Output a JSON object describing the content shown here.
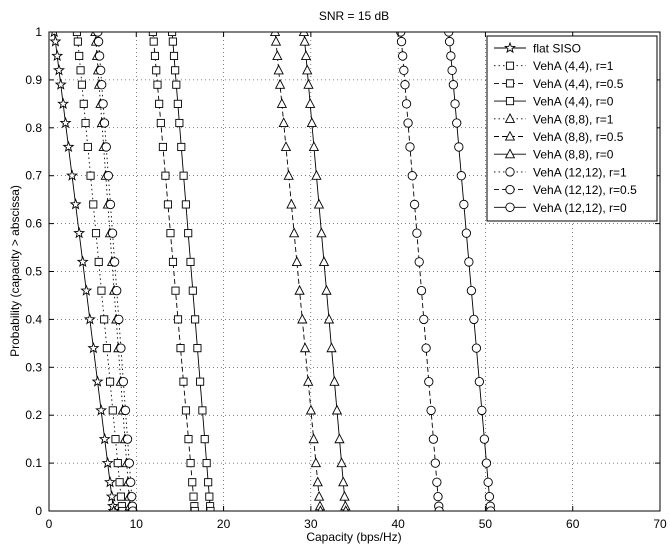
{
  "chart_data": {
    "type": "line",
    "title": "SNR = 15 dB",
    "xlabel": "Capacity (bps/Hz)",
    "ylabel": "Probability (capacity > abscissa)",
    "xlim": [
      0,
      70
    ],
    "ylim": [
      0,
      1
    ],
    "xticks": [
      0,
      10,
      20,
      30,
      40,
      50,
      60,
      70
    ],
    "yticks": [
      0,
      0.1,
      0.2,
      0.3,
      0.4,
      0.5,
      0.6,
      0.7,
      0.8,
      0.9,
      1
    ],
    "xtick_labels": [
      "0",
      "10",
      "20",
      "30",
      "40",
      "50",
      "60",
      "70"
    ],
    "ytick_labels": [
      "0",
      "0.1",
      "0.2",
      "0.3",
      "0.4",
      "0.5",
      "0.6",
      "0.7",
      "0.8",
      "0.9",
      "1"
    ],
    "grid": true,
    "legend_position": "top-right",
    "y_points": [
      1.0,
      0.98,
      0.95,
      0.92,
      0.89,
      0.85,
      0.81,
      0.76,
      0.7,
      0.64,
      0.58,
      0.52,
      0.46,
      0.4,
      0.34,
      0.27,
      0.21,
      0.15,
      0.1,
      0.06,
      0.03,
      0.01,
      0.0
    ],
    "series": [
      {
        "name": "flat SISO",
        "marker": "star",
        "dash": "solid",
        "mid": 4.0,
        "halfwidth": 3.4,
        "skew": 0.0
      },
      {
        "name": "VehA (4,4), r=1",
        "marker": "square",
        "dash": "dotted",
        "mid": 5.8,
        "halfwidth": 2.6,
        "skew": 0.0
      },
      {
        "name": "VehA (4,4), r=0.5",
        "marker": "square",
        "dash": "dashed",
        "mid": 14.3,
        "halfwidth": 2.4,
        "skew": 0.0
      },
      {
        "name": "VehA (4,4), r=0",
        "marker": "square",
        "dash": "solid",
        "mid": 16.3,
        "halfwidth": 2.2,
        "skew": 0.0
      },
      {
        "name": "VehA (8,8), r=1",
        "marker": "triangle",
        "dash": "dotted",
        "mid": 7.3,
        "halfwidth": 2.0,
        "skew": 0.0
      },
      {
        "name": "VehA (8,8), r=0.5",
        "marker": "triangle",
        "dash": "dashed",
        "mid": 28.5,
        "halfwidth": 2.6,
        "skew": 0.0
      },
      {
        "name": "VehA (8,8), r=0",
        "marker": "triangle",
        "dash": "solid",
        "mid": 31.6,
        "halfwidth": 2.4,
        "skew": 0.0
      },
      {
        "name": "VehA (12,12), r=1",
        "marker": "circle",
        "dash": "dotted",
        "mid": 7.6,
        "halfwidth": 2.0,
        "skew": 0.0
      },
      {
        "name": "VehA (12,12), r=0.5",
        "marker": "circle",
        "dash": "dashed",
        "mid": 42.5,
        "halfwidth": 2.2,
        "skew": 0.0
      },
      {
        "name": "VehA (12,12), r=0",
        "marker": "circle",
        "dash": "solid",
        "mid": 48.2,
        "halfwidth": 2.4,
        "skew": 0.0
      }
    ]
  }
}
